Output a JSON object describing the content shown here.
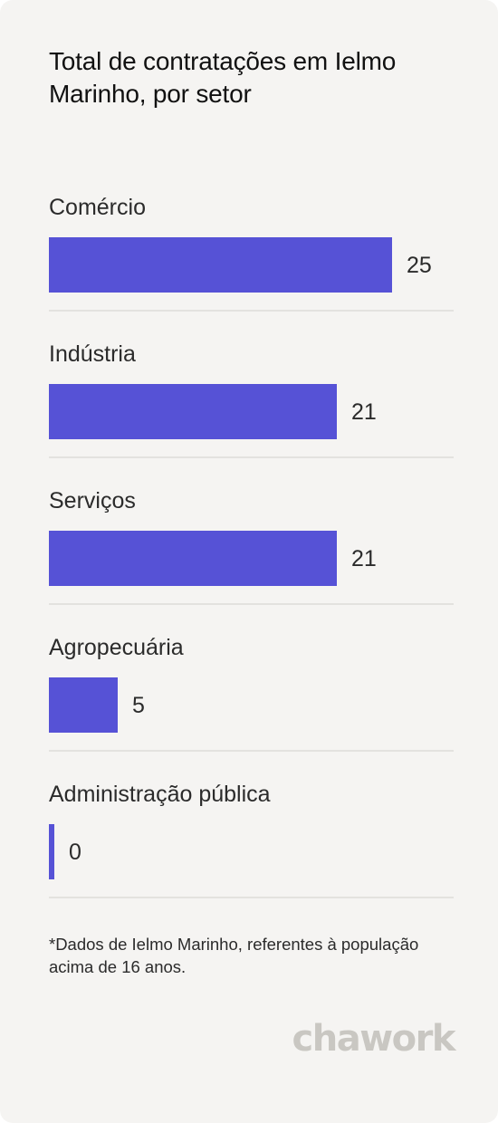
{
  "title": "Total de contratações em Ielmo Marinho, por setor",
  "footnote": "*Dados de Ielmo Marinho, referentes à população acima de 16 anos.",
  "brand": "chawork",
  "colors": {
    "bar": "#5652d6",
    "background": "#f5f4f2",
    "divider": "#e3e2df",
    "logo": "#c9c7c2"
  },
  "chart_data": {
    "type": "bar",
    "orientation": "horizontal",
    "title": "Total de contratações em Ielmo Marinho, por setor",
    "categories": [
      "Comércio",
      "Indústria",
      "Serviços",
      "Agropecuária",
      "Administração pública"
    ],
    "values": [
      25,
      21,
      21,
      5,
      0
    ],
    "data_labels": [
      "25",
      "21",
      "21",
      "5",
      "0"
    ],
    "xlim": [
      0,
      25
    ],
    "grid": false,
    "legend": "none"
  }
}
